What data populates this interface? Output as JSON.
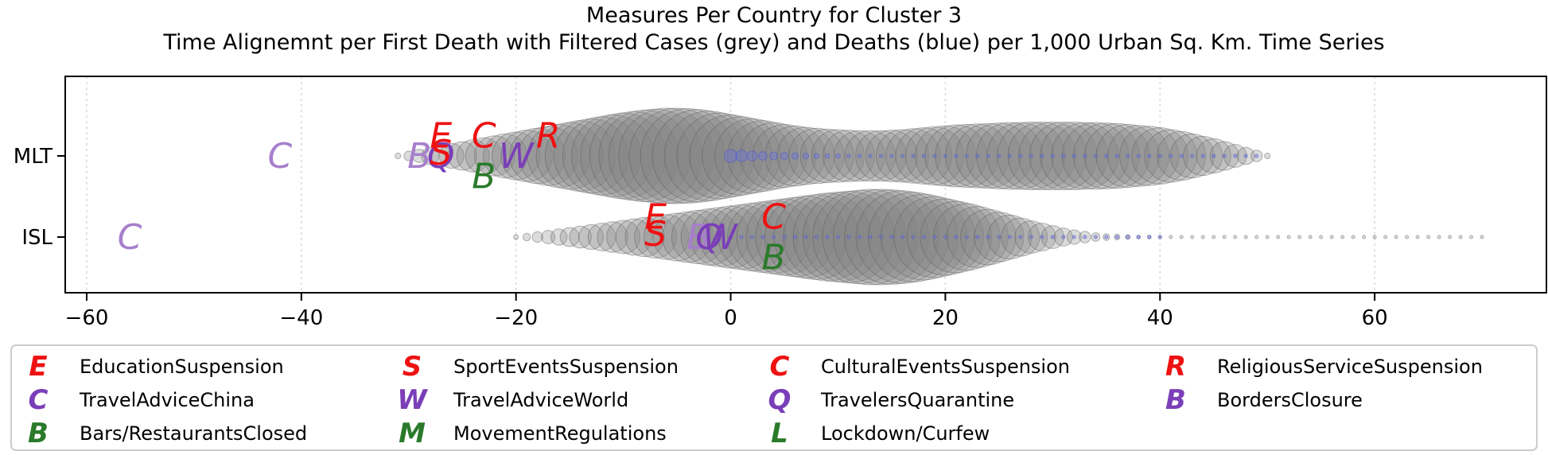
{
  "chart_data": {
    "type": "scatter",
    "title": "Measures Per Country for Cluster 3",
    "subtitle": "Time Alignemnt per First Death with Filtered Cases (grey) and Deaths (blue) per 1,000 Urban Sq. Km. Time Series",
    "xlabel": "",
    "ylabel": "",
    "xlim": [
      -62,
      76
    ],
    "xticks": [
      -60,
      -40,
      -20,
      0,
      20,
      40,
      60
    ],
    "xtick_labels": [
      "−60",
      "−40",
      "−20",
      "0",
      "20",
      "40",
      "60"
    ],
    "categories": [
      "MLT",
      "ISL"
    ],
    "grid": "x",
    "legend_position": "bottom",
    "colors": {
      "cases": "#808080",
      "deaths": "#6a6fc8",
      "red": "#ee1111",
      "purple": "#7a3fb8",
      "light_purple": "#a77fcc",
      "green": "#2a7a2a"
    },
    "series": [
      {
        "name": "cases",
        "country": "MLT",
        "x_start": -31,
        "x_end": 50,
        "values": [
          0.06,
          0.1,
          0.14,
          0.18,
          0.22,
          0.26,
          0.3,
          0.34,
          0.38,
          0.42,
          0.46,
          0.5,
          0.54,
          0.58,
          0.62,
          0.66,
          0.7,
          0.74,
          0.78,
          0.82,
          0.86,
          0.9,
          0.93,
          0.96,
          0.98,
          1.0,
          1.0,
          0.99,
          0.97,
          0.94,
          0.9,
          0.86,
          0.82,
          0.78,
          0.74,
          0.7,
          0.66,
          0.63,
          0.6,
          0.58,
          0.56,
          0.55,
          0.54,
          0.53,
          0.53,
          0.53,
          0.54,
          0.55,
          0.57,
          0.59,
          0.61,
          0.63,
          0.65,
          0.66,
          0.67,
          0.68,
          0.69,
          0.7,
          0.7,
          0.71,
          0.71,
          0.71,
          0.71,
          0.71,
          0.7,
          0.7,
          0.69,
          0.68,
          0.66,
          0.64,
          0.62,
          0.59,
          0.55,
          0.51,
          0.46,
          0.41,
          0.36,
          0.3,
          0.24,
          0.18,
          0.12,
          0.06
        ]
      },
      {
        "name": "cases",
        "country": "ISL",
        "x_start": -20,
        "x_end": 70,
        "values": [
          0.05,
          0.08,
          0.11,
          0.14,
          0.17,
          0.2,
          0.23,
          0.26,
          0.29,
          0.32,
          0.35,
          0.38,
          0.41,
          0.44,
          0.47,
          0.5,
          0.53,
          0.56,
          0.59,
          0.62,
          0.65,
          0.68,
          0.71,
          0.74,
          0.77,
          0.8,
          0.83,
          0.86,
          0.89,
          0.92,
          0.94,
          0.96,
          0.98,
          1.0,
          1.0,
          0.99,
          0.97,
          0.94,
          0.9,
          0.85,
          0.8,
          0.75,
          0.7,
          0.64,
          0.58,
          0.52,
          0.46,
          0.4,
          0.34,
          0.29,
          0.24,
          0.19,
          0.15,
          0.12,
          0.09,
          0.07,
          0.06,
          0.05,
          0.04,
          0.04,
          0.03,
          0.03,
          0.03,
          0.03,
          0.03,
          0.03,
          0.03,
          0.03,
          0.03,
          0.03,
          0.03,
          0.03,
          0.03,
          0.03,
          0.03,
          0.03,
          0.03,
          0.03,
          0.03,
          0.03,
          0.03,
          0.03,
          0.03,
          0.03,
          0.03,
          0.03,
          0.03,
          0.03,
          0.03,
          0.03,
          0.03
        ]
      },
      {
        "name": "deaths",
        "country": "MLT",
        "x_start": 0,
        "x_end": 49,
        "values": [
          0.9,
          0.8,
          0.7,
          0.6,
          0.55,
          0.5,
          0.45,
          0.4,
          0.35,
          0.3,
          0.3,
          0.25,
          0.25,
          0.25,
          0.2,
          0.2,
          0.2,
          0.2,
          0.2,
          0.2,
          0.2,
          0.2,
          0.2,
          0.2,
          0.2,
          0.2,
          0.2,
          0.2,
          0.2,
          0.2,
          0.2,
          0.2,
          0.2,
          0.2,
          0.2,
          0.2,
          0.2,
          0.2,
          0.2,
          0.2,
          0.2,
          0.2,
          0.2,
          0.2,
          0.2,
          0.2,
          0.2,
          0.2,
          0.2,
          0.2
        ]
      },
      {
        "name": "deaths",
        "country": "ISL",
        "x_start": 0,
        "x_end": 40,
        "values": [
          0.15,
          0.15,
          0.15,
          0.15,
          0.15,
          0.15,
          0.15,
          0.15,
          0.15,
          0.15,
          0.15,
          0.15,
          0.15,
          0.15,
          0.15,
          0.15,
          0.15,
          0.15,
          0.15,
          0.15,
          0.15,
          0.15,
          0.15,
          0.15,
          0.15,
          0.15,
          0.15,
          0.15,
          0.15,
          0.15,
          0.15,
          0.15,
          0.15,
          0.15,
          0.15,
          0.15,
          0.15,
          0.15,
          0.15,
          0.15,
          0.15
        ]
      }
    ],
    "measures": [
      {
        "country": "MLT",
        "code": "C",
        "x": -42,
        "offset": 0,
        "color": "light_purple"
      },
      {
        "country": "MLT",
        "code": "B",
        "x": -29,
        "offset": 0,
        "color": "light_purple"
      },
      {
        "country": "MLT",
        "code": "Q",
        "x": -27,
        "offset": 0,
        "color": "purple"
      },
      {
        "country": "MLT",
        "code": "E",
        "x": -27,
        "offset": -0.3,
        "color": "red"
      },
      {
        "country": "MLT",
        "code": "S",
        "x": -27,
        "offset": -0.05,
        "color": "red"
      },
      {
        "country": "MLT",
        "code": "C",
        "x": -23,
        "offset": -0.3,
        "color": "red"
      },
      {
        "country": "MLT",
        "code": "B",
        "x": -23,
        "offset": 0.3,
        "color": "green"
      },
      {
        "country": "MLT",
        "code": "W",
        "x": -20,
        "offset": 0,
        "color": "purple"
      },
      {
        "country": "MLT",
        "code": "R",
        "x": -17,
        "offset": -0.3,
        "color": "red"
      },
      {
        "country": "ISL",
        "code": "C",
        "x": -56,
        "offset": 0,
        "color": "light_purple"
      },
      {
        "country": "ISL",
        "code": "E",
        "x": -7,
        "offset": -0.3,
        "color": "red"
      },
      {
        "country": "ISL",
        "code": "S",
        "x": -7,
        "offset": -0.05,
        "color": "red"
      },
      {
        "country": "ISL",
        "code": "B",
        "x": -3,
        "offset": 0,
        "color": "light_purple"
      },
      {
        "country": "ISL",
        "code": "Q",
        "x": -2,
        "offset": 0,
        "color": "purple"
      },
      {
        "country": "ISL",
        "code": "W",
        "x": -1,
        "offset": 0,
        "color": "purple"
      },
      {
        "country": "ISL",
        "code": "C",
        "x": 4,
        "offset": -0.3,
        "color": "red"
      },
      {
        "country": "ISL",
        "code": "B",
        "x": 4,
        "offset": 0.3,
        "color": "green"
      }
    ],
    "legend": [
      {
        "glyph": "E",
        "label": "EducationSuspension",
        "color": "red"
      },
      {
        "glyph": "S",
        "label": "SportEventsSuspension",
        "color": "red"
      },
      {
        "glyph": "C",
        "label": "CulturalEventsSuspension",
        "color": "red"
      },
      {
        "glyph": "R",
        "label": "ReligiousServiceSuspension",
        "color": "red"
      },
      {
        "glyph": "C",
        "label": "TravelAdviceChina",
        "color": "purple"
      },
      {
        "glyph": "W",
        "label": "TravelAdviceWorld",
        "color": "purple"
      },
      {
        "glyph": "Q",
        "label": "TravelersQuarantine",
        "color": "purple"
      },
      {
        "glyph": "B",
        "label": "BordersClosure",
        "color": "purple"
      },
      {
        "glyph": "B",
        "label": "Bars/RestaurantsClosed",
        "color": "green"
      },
      {
        "glyph": "M",
        "label": "MovementRegulations",
        "color": "green"
      },
      {
        "glyph": "L",
        "label": "Lockdown/Curfew",
        "color": "green"
      }
    ]
  }
}
